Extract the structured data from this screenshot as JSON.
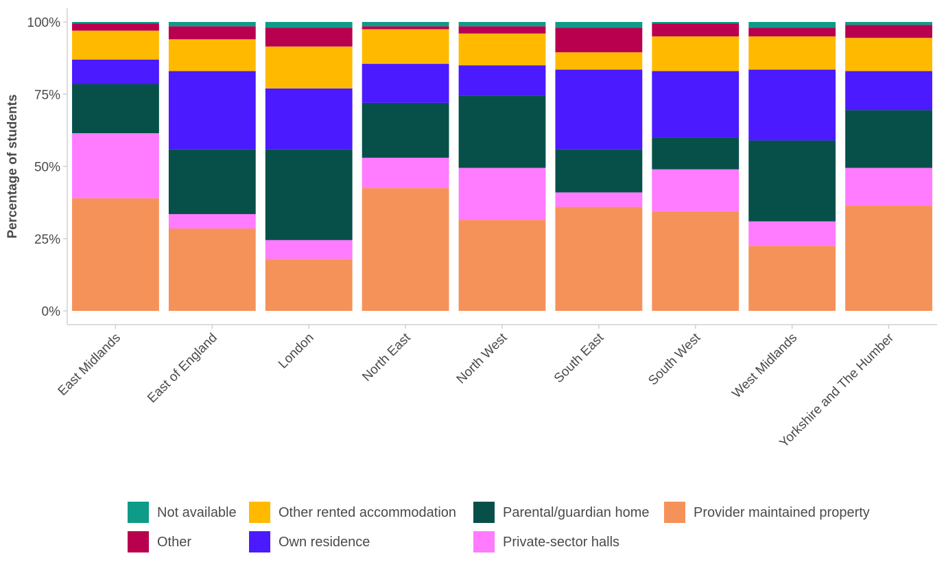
{
  "chart_data": {
    "type": "bar",
    "stacked": true,
    "normalized": true,
    "title": "",
    "xlabel": "",
    "ylabel": "Percentage of students",
    "ylim": [
      0,
      100
    ],
    "yticks": [
      "0%",
      "25%",
      "50%",
      "75%",
      "100%"
    ],
    "grid": false,
    "legend_position": "bottom",
    "categories": [
      "East Midlands",
      "East of England",
      "London",
      "North East",
      "North West",
      "South East",
      "South West",
      "West Midlands",
      "Yorkshire and The Humber"
    ],
    "series": [
      {
        "name": "Provider maintained property",
        "color": "#F5925A",
        "values": [
          39,
          28.5,
          18,
          42.5,
          31.5,
          36,
          34.5,
          22.5,
          36.5
        ]
      },
      {
        "name": "Private-sector halls",
        "color": "#FF7BFF",
        "values": [
          22.5,
          5,
          6.5,
          10.5,
          18,
          5,
          14.5,
          8.5,
          13
        ]
      },
      {
        "name": "Parental/guardian home",
        "color": "#07504A",
        "values": [
          17,
          22.5,
          31.5,
          19,
          25,
          15,
          11,
          28,
          20
        ]
      },
      {
        "name": "Own residence",
        "color": "#4B1AFF",
        "values": [
          8.5,
          27,
          21,
          13.5,
          10.5,
          27.5,
          23,
          24.5,
          13.5
        ]
      },
      {
        "name": "Other rented accommodation",
        "color": "#FFBA00",
        "values": [
          10,
          11,
          14.5,
          12,
          11,
          6,
          12,
          11.5,
          11.5
        ]
      },
      {
        "name": "Other",
        "color": "#B8004F",
        "values": [
          2.5,
          4.5,
          6.5,
          1,
          2.5,
          8.5,
          4.5,
          3,
          4.5
        ]
      },
      {
        "name": "Not available",
        "color": "#0E9B87",
        "values": [
          0.5,
          1.5,
          2,
          1.5,
          1.5,
          2,
          0.5,
          2,
          1
        ]
      }
    ],
    "legend_order": [
      "Not available",
      "Other rented accommodation",
      "Parental/guardian home",
      "Provider maintained property",
      "Other",
      "Own residence",
      "Private-sector halls"
    ]
  }
}
